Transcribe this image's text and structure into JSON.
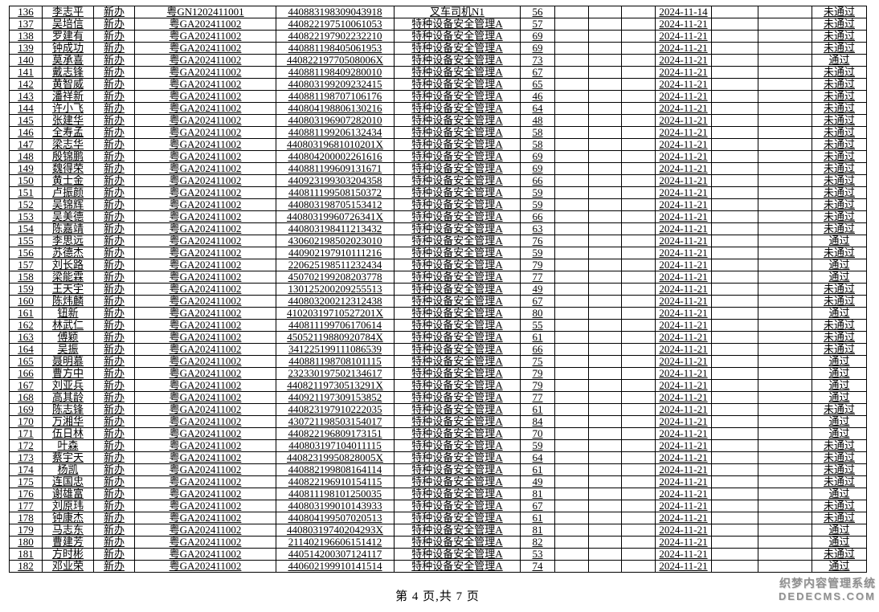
{
  "page": {
    "footer": "第 4 页,共 7 页",
    "watermark_line1": "织梦内容管理系统",
    "watermark_line2": "DEDECMS.COM"
  },
  "colors": {
    "text": "#000000",
    "border": "#000000",
    "background": "#ffffff",
    "watermark": "#8f8f8f"
  },
  "table": {
    "column_keys": [
      "seq",
      "name",
      "apply-type",
      "batch-code",
      "id-number",
      "subject",
      "score",
      "blank1",
      "blank2",
      "blank3",
      "exam-date",
      "blank4",
      "blank5",
      "result"
    ],
    "rows": [
      [
        "136",
        "李志平",
        "新办",
        "粤GN1202411001",
        "440883198309043918",
        "叉车司机N1",
        "56",
        "",
        "",
        "",
        "2024-11-14",
        "",
        "",
        "未通过"
      ],
      [
        "137",
        "吴培信",
        "新办",
        "粤GA202411002",
        "440822197510061053",
        "特种设备安全管理A",
        "57",
        "",
        "",
        "",
        "2024-11-21",
        "",
        "",
        "未通过"
      ],
      [
        "138",
        "罗建有",
        "新办",
        "粤GA202411002",
        "440822197902232210",
        "特种设备安全管理A",
        "69",
        "",
        "",
        "",
        "2024-11-21",
        "",
        "",
        "未通过"
      ],
      [
        "139",
        "钟成功",
        "新办",
        "粤GA202411002",
        "440881198405061953",
        "特种设备安全管理A",
        "69",
        "",
        "",
        "",
        "2024-11-21",
        "",
        "",
        "未通过"
      ],
      [
        "140",
        "莫承喜",
        "新办",
        "粤GA202411002",
        "44082219770508006X",
        "特种设备安全管理A",
        "73",
        "",
        "",
        "",
        "2024-11-21",
        "",
        "",
        "通过"
      ],
      [
        "141",
        "戴志锋",
        "新办",
        "粤GA202411002",
        "440881198409280010",
        "特种设备安全管理A",
        "67",
        "",
        "",
        "",
        "2024-11-21",
        "",
        "",
        "未通过"
      ],
      [
        "142",
        "黄智威",
        "新办",
        "粤GA202411002",
        "440803199209232415",
        "特种设备安全管理A",
        "65",
        "",
        "",
        "",
        "2024-11-21",
        "",
        "",
        "未通过"
      ],
      [
        "143",
        "潘祥新",
        "新办",
        "粤GA202411002",
        "440881198707106176",
        "特种设备安全管理A",
        "46",
        "",
        "",
        "",
        "2024-11-21",
        "",
        "",
        "未通过"
      ],
      [
        "144",
        "许小飞",
        "新办",
        "粤GA202411002",
        "440804198806130216",
        "特种设备安全管理A",
        "64",
        "",
        "",
        "",
        "2024-11-21",
        "",
        "",
        "未通过"
      ],
      [
        "145",
        "张建华",
        "新办",
        "粤GA202411002",
        "440803196907282010",
        "特种设备安全管理A",
        "48",
        "",
        "",
        "",
        "2024-11-21",
        "",
        "",
        "未通过"
      ],
      [
        "146",
        "全寿孟",
        "新办",
        "粤GA202411002",
        "440881199206132434",
        "特种设备安全管理A",
        "58",
        "",
        "",
        "",
        "2024-11-21",
        "",
        "",
        "未通过"
      ],
      [
        "147",
        "梁志华",
        "新办",
        "粤GA202411002",
        "44080319681010201X",
        "特种设备安全管理A",
        "58",
        "",
        "",
        "",
        "2024-11-21",
        "",
        "",
        "未通过"
      ],
      [
        "148",
        "殷锦鹏",
        "新办",
        "粤GA202411002",
        "440804200002261616",
        "特种设备安全管理A",
        "69",
        "",
        "",
        "",
        "2024-11-21",
        "",
        "",
        "未通过"
      ],
      [
        "149",
        "魏得荣",
        "新办",
        "粤GA202411002",
        "440881199609131671",
        "特种设备安全管理A",
        "69",
        "",
        "",
        "",
        "2024-11-21",
        "",
        "",
        "未通过"
      ],
      [
        "150",
        "黄士金",
        "新办",
        "粤GA202411002",
        "440923199303204358",
        "特种设备安全管理A",
        "66",
        "",
        "",
        "",
        "2024-11-21",
        "",
        "",
        "未通过"
      ],
      [
        "151",
        "卢振颜",
        "新办",
        "粤GA202411002",
        "440811199508150372",
        "特种设备安全管理A",
        "59",
        "",
        "",
        "",
        "2024-11-21",
        "",
        "",
        "未通过"
      ],
      [
        "152",
        "吴锦辉",
        "新办",
        "粤GA202411002",
        "440803198705153412",
        "特种设备安全管理A",
        "59",
        "",
        "",
        "",
        "2024-11-21",
        "",
        "",
        "未通过"
      ],
      [
        "153",
        "吴美德",
        "新办",
        "粤GA202411002",
        "44080319960726341X",
        "特种设备安全管理A",
        "66",
        "",
        "",
        "",
        "2024-11-21",
        "",
        "",
        "未通过"
      ],
      [
        "154",
        "陈嘉靖",
        "新办",
        "粤GA202411002",
        "440803198411213432",
        "特种设备安全管理A",
        "63",
        "",
        "",
        "",
        "2024-11-21",
        "",
        "",
        "未通过"
      ],
      [
        "155",
        "李思远",
        "新办",
        "粤GA202411002",
        "430602198502023010",
        "特种设备安全管理A",
        "76",
        "",
        "",
        "",
        "2024-11-21",
        "",
        "",
        "通过"
      ],
      [
        "156",
        "苏德杰",
        "新办",
        "粤GA202411002",
        "440902197910111216",
        "特种设备安全管理A",
        "59",
        "",
        "",
        "",
        "2024-11-21",
        "",
        "",
        "未通过"
      ],
      [
        "157",
        "刘长路",
        "新办",
        "粤GA202411002",
        "220625198511232434",
        "特种设备安全管理A",
        "79",
        "",
        "",
        "",
        "2024-11-21",
        "",
        "",
        "通过"
      ],
      [
        "158",
        "梁能霖",
        "新办",
        "粤GA202411002",
        "450702199208203778",
        "特种设备安全管理A",
        "77",
        "",
        "",
        "",
        "2024-11-21",
        "",
        "",
        "通过"
      ],
      [
        "159",
        "王天宇",
        "新办",
        "粤GA202411002",
        "130125200209255513",
        "特种设备安全管理A",
        "49",
        "",
        "",
        "",
        "2024-11-21",
        "",
        "",
        "未通过"
      ],
      [
        "160",
        "陈炜麟",
        "新办",
        "粤GA202411002",
        "440803200212312438",
        "特种设备安全管理A",
        "67",
        "",
        "",
        "",
        "2024-11-21",
        "",
        "",
        "未通过"
      ],
      [
        "161",
        "钮新",
        "新办",
        "粤GA202411002",
        "41020319710527201X",
        "特种设备安全管理A",
        "80",
        "",
        "",
        "",
        "2024-11-21",
        "",
        "",
        "通过"
      ],
      [
        "162",
        "林武仁",
        "新办",
        "粤GA202411002",
        "440811199706170614",
        "特种设备安全管理A",
        "55",
        "",
        "",
        "",
        "2024-11-21",
        "",
        "",
        "未通过"
      ],
      [
        "163",
        "傅颖",
        "新办",
        "粤GA202411002",
        "45052119880920784X",
        "特种设备安全管理A",
        "61",
        "",
        "",
        "",
        "2024-11-21",
        "",
        "",
        "未通过"
      ],
      [
        "164",
        "吴振",
        "新办",
        "粤GA202411002",
        "341225199111086539",
        "特种设备安全管理A",
        "66",
        "",
        "",
        "",
        "2024-11-21",
        "",
        "",
        "未通过"
      ],
      [
        "165",
        "聂明慕",
        "新办",
        "粤GA202411002",
        "440881198708101115",
        "特种设备安全管理A",
        "75",
        "",
        "",
        "",
        "2024-11-21",
        "",
        "",
        "通过"
      ],
      [
        "166",
        "曹方中",
        "新办",
        "粤GA202411002",
        "232330197502134617",
        "特种设备安全管理A",
        "79",
        "",
        "",
        "",
        "2024-11-21",
        "",
        "",
        "通过"
      ],
      [
        "167",
        "刘亚兵",
        "新办",
        "粤GA202411002",
        "44082119730513291X",
        "特种设备安全管理A",
        "79",
        "",
        "",
        "",
        "2024-11-21",
        "",
        "",
        "通过"
      ],
      [
        "168",
        "高其龄",
        "新办",
        "粤GA202411002",
        "440921197309153852",
        "特种设备安全管理A",
        "77",
        "",
        "",
        "",
        "2024-11-21",
        "",
        "",
        "通过"
      ],
      [
        "169",
        "陈志锋",
        "新办",
        "粤GA202411002",
        "440823197910222035",
        "特种设备安全管理A",
        "61",
        "",
        "",
        "",
        "2024-11-21",
        "",
        "",
        "未通过"
      ],
      [
        "170",
        "万湘华",
        "新办",
        "粤GA202411002",
        "430721198503154017",
        "特种设备安全管理A",
        "84",
        "",
        "",
        "",
        "2024-11-21",
        "",
        "",
        "通过"
      ],
      [
        "171",
        "伍日林",
        "新办",
        "粤GA202411002",
        "440822196809173151",
        "特种设备安全管理A",
        "70",
        "",
        "",
        "",
        "2024-11-21",
        "",
        "",
        "通过"
      ],
      [
        "172",
        "叶森",
        "新办",
        "粤GA202411002",
        "440803197104011115",
        "特种设备安全管理A",
        "59",
        "",
        "",
        "",
        "2024-11-21",
        "",
        "",
        "未通过"
      ],
      [
        "173",
        "蔡宇天",
        "新办",
        "粤GA202411002",
        "44082319950828005X",
        "特种设备安全管理A",
        "64",
        "",
        "",
        "",
        "2024-11-21",
        "",
        "",
        "未通过"
      ],
      [
        "174",
        "杨凯",
        "新办",
        "粤GA202411002",
        "440882199808164114",
        "特种设备安全管理A",
        "61",
        "",
        "",
        "",
        "2024-11-21",
        "",
        "",
        "未通过"
      ],
      [
        "175",
        "连国忠",
        "新办",
        "粤GA202411002",
        "440822196910154115",
        "特种设备安全管理A",
        "49",
        "",
        "",
        "",
        "2024-11-21",
        "",
        "",
        "未通过"
      ],
      [
        "176",
        "谢雄富",
        "新办",
        "粤GA202411002",
        "440811198101250035",
        "特种设备安全管理A",
        "81",
        "",
        "",
        "",
        "2024-11-21",
        "",
        "",
        "通过"
      ],
      [
        "177",
        "刘原玮",
        "新办",
        "粤GA202411002",
        "440803199010143933",
        "特种设备安全管理A",
        "67",
        "",
        "",
        "",
        "2024-11-21",
        "",
        "",
        "未通过"
      ],
      [
        "178",
        "钟康杰",
        "新办",
        "粤GA202411002",
        "440804199507020513",
        "特种设备安全管理A",
        "61",
        "",
        "",
        "",
        "2024-11-21",
        "",
        "",
        "未通过"
      ],
      [
        "179",
        "马志东",
        "新办",
        "粤GA202411002",
        "44080319740204293X",
        "特种设备安全管理A",
        "81",
        "",
        "",
        "",
        "2024-11-21",
        "",
        "",
        "通过"
      ],
      [
        "180",
        "曹建芳",
        "新办",
        "粤GA202411002",
        "211402196606151412",
        "特种设备安全管理A",
        "82",
        "",
        "",
        "",
        "2024-11-21",
        "",
        "",
        "通过"
      ],
      [
        "181",
        "方时彬",
        "新办",
        "粤GA202411002",
        "440514200307124117",
        "特种设备安全管理A",
        "53",
        "",
        "",
        "",
        "2024-11-21",
        "",
        "",
        "未通过"
      ],
      [
        "182",
        "邓业荣",
        "新办",
        "粤GA202411002",
        "440602199910141514",
        "特种设备安全管理A",
        "74",
        "",
        "",
        "",
        "2024-11-21",
        "",
        "",
        "通过"
      ]
    ]
  }
}
